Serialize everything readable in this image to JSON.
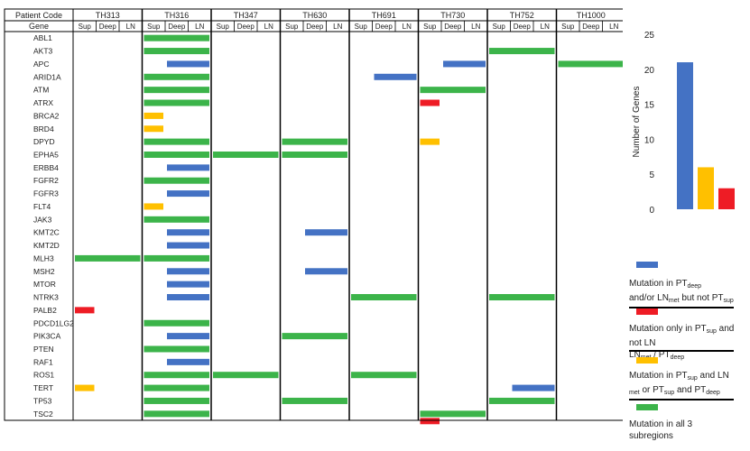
{
  "colors": {
    "blue": "#4472C4",
    "red": "#EE1C25",
    "yellow": "#FFC000",
    "green": "#3CB44A"
  },
  "header": {
    "patient_code_label": "Patient Code",
    "gene_label": "Gene",
    "subregion_labels": [
      "Sup",
      "Deep",
      "LN"
    ]
  },
  "chart_data": [
    {
      "type": "heatmap",
      "title": "",
      "patients": [
        "TH313",
        "TH316",
        "TH347",
        "TH630",
        "TH691",
        "TH730",
        "TH752",
        "TH1000"
      ],
      "subregions": [
        "Sup",
        "Deep",
        "LN"
      ],
      "genes": [
        "ABL1",
        "AKT3",
        "APC",
        "ARID1A",
        "ATM",
        "ATRX",
        "BRCA2",
        "BRD4",
        "DPYD",
        "EPHA5",
        "ERBB4",
        "FGFR2",
        "FGFR3",
        "FLT4",
        "JAK3",
        "KMT2C",
        "KMT2D",
        "MLH3",
        "MSH2",
        "MTOR",
        "NTRK3",
        "PALB2",
        "PDCD1LG2",
        "PIK3CA",
        "PTEN",
        "RAF1",
        "ROS1",
        "TERT",
        "TP53",
        "TSC2"
      ],
      "category_legend": {
        "blue": "Mutation in PT deep and/or LN met but not PT sup",
        "red": "Mutation only in PT sup and not LN met / PT deep",
        "yellow": "Mutation in PT sup and LN met or PT sup and PT deep",
        "green": "Mutation in all 3 subregions"
      },
      "mutations": [
        {
          "patient": "TH313",
          "gene": "MLH3",
          "category": "green"
        },
        {
          "patient": "TH313",
          "gene": "PALB2",
          "category": "red"
        },
        {
          "patient": "TH313",
          "gene": "TERT",
          "category": "yellow"
        },
        {
          "patient": "TH316",
          "gene": "ABL1",
          "category": "green"
        },
        {
          "patient": "TH316",
          "gene": "AKT3",
          "category": "green"
        },
        {
          "patient": "TH316",
          "gene": "APC",
          "category": "blue"
        },
        {
          "patient": "TH316",
          "gene": "ARID1A",
          "category": "green"
        },
        {
          "patient": "TH316",
          "gene": "ATM",
          "category": "green"
        },
        {
          "patient": "TH316",
          "gene": "ATRX",
          "category": "green"
        },
        {
          "patient": "TH316",
          "gene": "BRCA2",
          "category": "yellow"
        },
        {
          "patient": "TH316",
          "gene": "BRD4",
          "category": "yellow"
        },
        {
          "patient": "TH316",
          "gene": "DPYD",
          "category": "green"
        },
        {
          "patient": "TH316",
          "gene": "EPHA5",
          "category": "green"
        },
        {
          "patient": "TH316",
          "gene": "ERBB4",
          "category": "blue"
        },
        {
          "patient": "TH316",
          "gene": "FGFR2",
          "category": "green"
        },
        {
          "patient": "TH316",
          "gene": "FGFR3",
          "category": "blue"
        },
        {
          "patient": "TH316",
          "gene": "FLT4",
          "category": "yellow"
        },
        {
          "patient": "TH316",
          "gene": "JAK3",
          "category": "green"
        },
        {
          "patient": "TH316",
          "gene": "KMT2C",
          "category": "blue"
        },
        {
          "patient": "TH316",
          "gene": "KMT2D",
          "category": "blue"
        },
        {
          "patient": "TH316",
          "gene": "MLH3",
          "category": "green"
        },
        {
          "patient": "TH316",
          "gene": "MSH2",
          "category": "blue"
        },
        {
          "patient": "TH316",
          "gene": "MTOR",
          "category": "blue"
        },
        {
          "patient": "TH316",
          "gene": "NTRK3",
          "category": "blue"
        },
        {
          "patient": "TH316",
          "gene": "PDCD1LG2",
          "category": "green"
        },
        {
          "patient": "TH316",
          "gene": "PIK3CA",
          "category": "blue"
        },
        {
          "patient": "TH316",
          "gene": "PTEN",
          "category": "green"
        },
        {
          "patient": "TH316",
          "gene": "RAF1",
          "category": "blue"
        },
        {
          "patient": "TH316",
          "gene": "ROS1",
          "category": "green"
        },
        {
          "patient": "TH316",
          "gene": "TERT",
          "category": "green"
        },
        {
          "patient": "TH316",
          "gene": "TP53",
          "category": "green"
        },
        {
          "patient": "TH316",
          "gene": "TSC2",
          "category": "green"
        },
        {
          "patient": "TH347",
          "gene": "EPHA5",
          "category": "green"
        },
        {
          "patient": "TH347",
          "gene": "ROS1",
          "category": "green"
        },
        {
          "patient": "TH630",
          "gene": "DPYD",
          "category": "green"
        },
        {
          "patient": "TH630",
          "gene": "EPHA5",
          "category": "green"
        },
        {
          "patient": "TH630",
          "gene": "KMT2C",
          "category": "blue"
        },
        {
          "patient": "TH630",
          "gene": "MSH2",
          "category": "blue"
        },
        {
          "patient": "TH630",
          "gene": "PIK3CA",
          "category": "green"
        },
        {
          "patient": "TH630",
          "gene": "TP53",
          "category": "green"
        },
        {
          "patient": "TH691",
          "gene": "ARID1A",
          "category": "blue"
        },
        {
          "patient": "TH691",
          "gene": "NTRK3",
          "category": "green"
        },
        {
          "patient": "TH691",
          "gene": "ROS1",
          "category": "green"
        },
        {
          "patient": "TH730",
          "gene": "APC",
          "category": "blue"
        },
        {
          "patient": "TH730",
          "gene": "ATM",
          "category": "green"
        },
        {
          "patient": "TH730",
          "gene": "ATRX",
          "category": "red"
        },
        {
          "patient": "TH730",
          "gene": "DPYD",
          "category": "yellow"
        },
        {
          "patient": "TH730",
          "gene": "TSC2",
          "category": "green"
        },
        {
          "patient": "TH730",
          "gene": "TSC2",
          "category": "red"
        },
        {
          "patient": "TH752",
          "gene": "AKT3",
          "category": "green"
        },
        {
          "patient": "TH752",
          "gene": "NTRK3",
          "category": "green"
        },
        {
          "patient": "TH752",
          "gene": "TERT",
          "category": "blue"
        },
        {
          "patient": "TH752",
          "gene": "TP53",
          "category": "green"
        },
        {
          "patient": "TH1000",
          "gene": "APC",
          "category": "green"
        }
      ]
    },
    {
      "type": "bar",
      "title": "",
      "ylabel": "Number of Genes",
      "ylim": [
        0,
        25
      ],
      "yticks": [
        "0",
        "5",
        "10",
        "15",
        "20",
        "25"
      ],
      "categories": [
        "blue",
        "yellow",
        "red"
      ],
      "values": [
        21,
        6,
        3
      ]
    }
  ],
  "legend": {
    "blue": {
      "parts": [
        "Mutation in PT",
        "deep",
        " and/or LN",
        "met",
        " but not PT",
        "sup"
      ]
    },
    "red": {
      "parts": [
        "Mutation only in PT",
        "sup",
        " and not LN",
        "met",
        " / PT",
        "deep"
      ]
    },
    "yellow": {
      "parts": [
        "Mutation in PT",
        "sup",
        " and LN",
        "met",
        " or PT",
        "sup",
        " and PT",
        "deep"
      ]
    },
    "green": {
      "parts": [
        "Mutation in all 3 subregions"
      ]
    }
  }
}
